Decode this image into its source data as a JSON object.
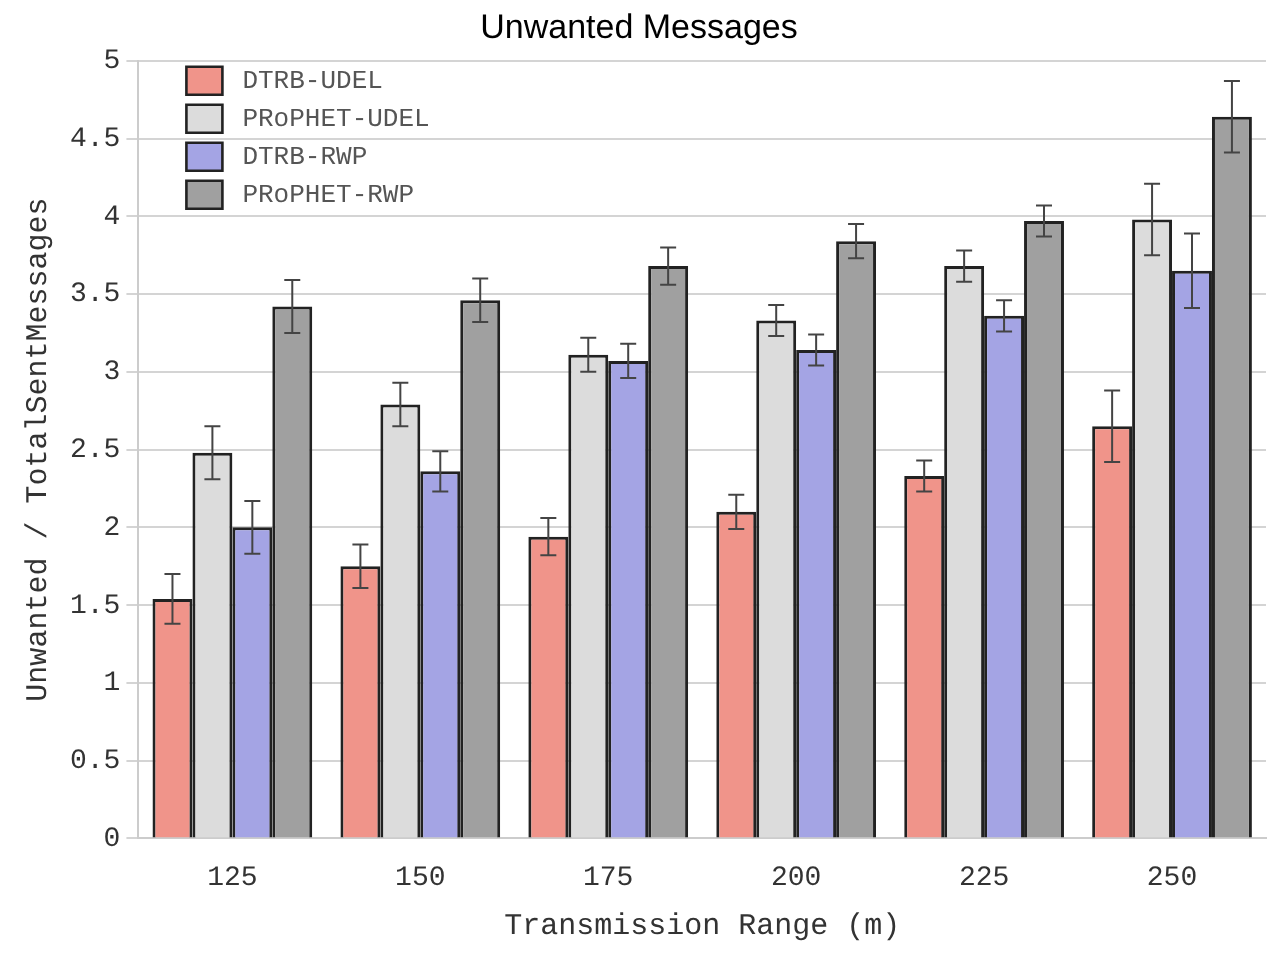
{
  "chart_data": {
    "type": "bar",
    "title": "Unwanted Messages",
    "xlabel": "Transmission Range (m)",
    "ylabel": "Unwanted / TotalSentMessages",
    "categories": [
      "125",
      "150",
      "175",
      "200",
      "225",
      "250"
    ],
    "series": [
      {
        "name": "DTRB-UDEL",
        "color": "#f0948a",
        "values": [
          1.54,
          1.75,
          1.94,
          2.1,
          2.33,
          2.65
        ],
        "errors": [
          0.16,
          0.14,
          0.12,
          0.11,
          0.1,
          0.23
        ]
      },
      {
        "name": "PRoPHET-UDEL",
        "color": "#dcdcdc",
        "values": [
          2.48,
          2.79,
          3.11,
          3.33,
          3.68,
          3.98
        ],
        "errors": [
          0.17,
          0.14,
          0.11,
          0.1,
          0.1,
          0.23
        ]
      },
      {
        "name": "DTRB-RWP",
        "color": "#a4a4e4",
        "values": [
          2.0,
          2.36,
          3.07,
          3.14,
          3.36,
          3.65
        ],
        "errors": [
          0.17,
          0.13,
          0.11,
          0.1,
          0.1,
          0.24
        ]
      },
      {
        "name": "PRoPHET-RWP",
        "color": "#a0a0a0",
        "values": [
          3.42,
          3.46,
          3.68,
          3.84,
          3.97,
          4.64
        ],
        "errors": [
          0.17,
          0.14,
          0.12,
          0.11,
          0.1,
          0.23
        ]
      }
    ],
    "ylim": [
      0,
      5
    ],
    "yticks": [
      0,
      0.5,
      1,
      1.5,
      2,
      2.5,
      3,
      3.5,
      4,
      4.5,
      5
    ],
    "grid": "y",
    "legend": "top left"
  }
}
